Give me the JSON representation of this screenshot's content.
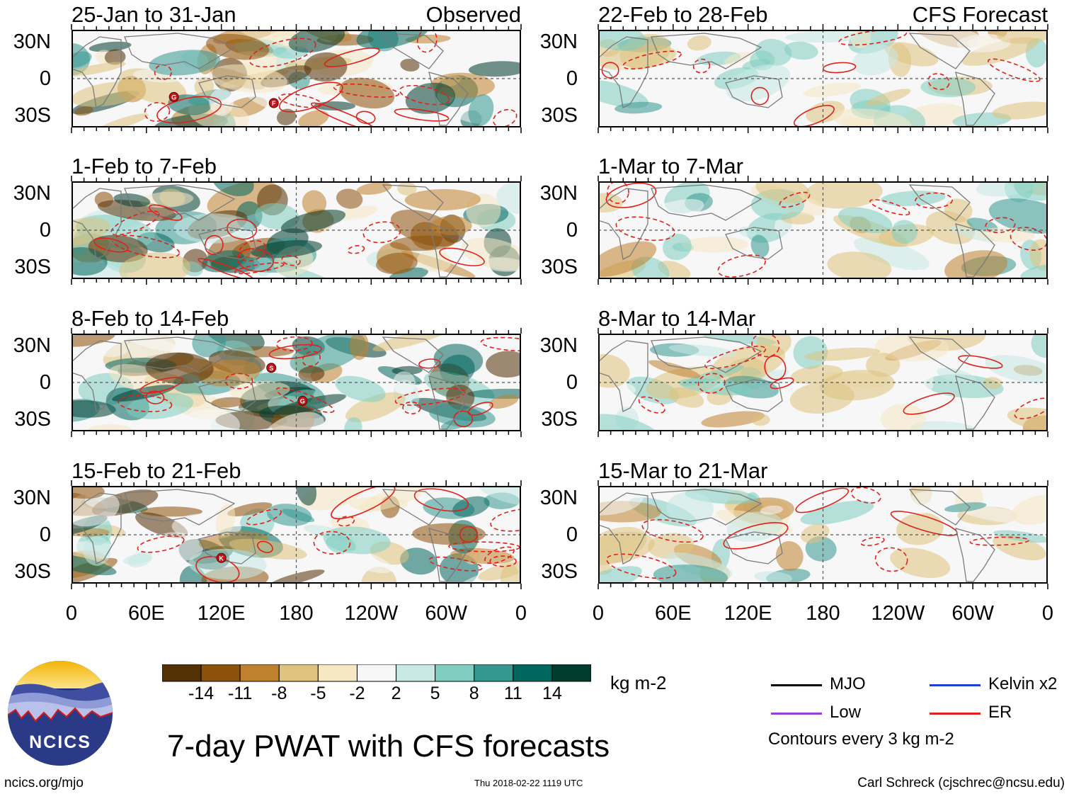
{
  "chart_data": {
    "type": "heatmap",
    "title": "7-day PWAT with CFS forecasts",
    "units": "kg m-2",
    "contour_note": "Contours every 3 kg m-2",
    "column_headers": {
      "left": "Observed",
      "right": "CFS Forecast"
    },
    "y_ticks": [
      "30N",
      "0",
      "30S"
    ],
    "x_ticks": [
      "0",
      "60E",
      "120E",
      "180",
      "120W",
      "60W",
      "0"
    ],
    "x_range_deg": [
      0,
      360
    ],
    "y_range_deg": [
      -40,
      40
    ],
    "panels_left": [
      {
        "period": "25-Jan to 31-Jan",
        "storms": [
          {
            "label": "G",
            "lon": 82,
            "lat": -15
          },
          {
            "label": "F",
            "lon": 162,
            "lat": -20
          }
        ]
      },
      {
        "period": "1-Feb to 7-Feb",
        "storms": []
      },
      {
        "period": "8-Feb to 14-Feb",
        "storms": [
          {
            "label": "S",
            "lon": 160,
            "lat": 12
          },
          {
            "label": "G",
            "lon": 185,
            "lat": -15
          }
        ]
      },
      {
        "period": "15-Feb to 21-Feb",
        "storms": [
          {
            "label": "K",
            "lon": 120,
            "lat": -19
          }
        ]
      }
    ],
    "panels_right": [
      {
        "period": "22-Feb to 28-Feb",
        "storms": []
      },
      {
        "period": "1-Mar to 7-Mar",
        "storms": []
      },
      {
        "period": "8-Mar to 14-Mar",
        "storms": []
      },
      {
        "period": "15-Mar to 21-Mar",
        "storms": []
      }
    ],
    "colorbar": {
      "labels": [
        "-14",
        "-11",
        "-8",
        "-5",
        "-2",
        "2",
        "5",
        "8",
        "11",
        "14"
      ],
      "colors": [
        "#543005",
        "#8c510a",
        "#bf812d",
        "#dfc27d",
        "#f6e8c3",
        "#f7f7f7",
        "#c7eae5",
        "#80cdc1",
        "#35978f",
        "#01665e",
        "#003c30"
      ]
    },
    "legend": [
      {
        "name": "MJO",
        "color": "#000000"
      },
      {
        "name": "Kelvin x2",
        "color": "#1f3fd6"
      },
      {
        "name": "Low",
        "color": "#9b3fd6"
      },
      {
        "name": "ER",
        "color": "#e0201a"
      }
    ]
  },
  "logo": {
    "text": "NCICS"
  },
  "footer": {
    "site": "ncics.org/mjo",
    "timestamp": "Thu 2018-02-22 1119 UTC",
    "credit": "Carl Schreck (cjschrec@ncsu.edu)"
  }
}
